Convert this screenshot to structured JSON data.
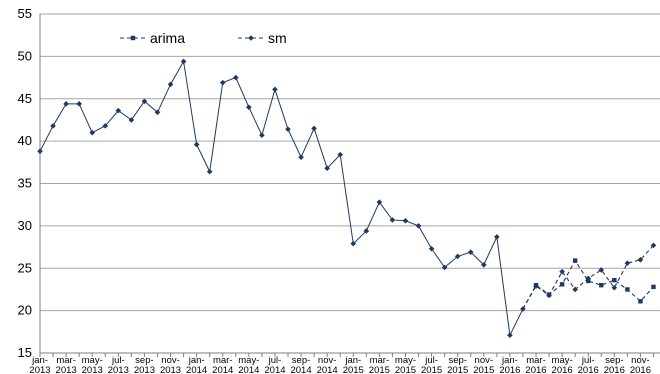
{
  "chart_data": {
    "type": "line",
    "ylim": [
      15,
      55
    ],
    "yticks": [
      15,
      20,
      25,
      30,
      35,
      40,
      45,
      50,
      55
    ],
    "grid": true,
    "legend_position": "top-left",
    "x_tick_labels": [
      {
        "top": "jan-",
        "bottom": "2013"
      },
      {
        "top": "mar-",
        "bottom": "2013"
      },
      {
        "top": "may-",
        "bottom": "2013"
      },
      {
        "top": "jul-",
        "bottom": "2013"
      },
      {
        "top": "sep-",
        "bottom": "2013"
      },
      {
        "top": "nov-",
        "bottom": "2013"
      },
      {
        "top": "jan-",
        "bottom": "2014"
      },
      {
        "top": "mar-",
        "bottom": "2014"
      },
      {
        "top": "may-",
        "bottom": "2014"
      },
      {
        "top": "jul-",
        "bottom": "2014"
      },
      {
        "top": "sep-",
        "bottom": "2014"
      },
      {
        "top": "nov-",
        "bottom": "2014"
      },
      {
        "top": "jan-",
        "bottom": "2015"
      },
      {
        "top": "mar-",
        "bottom": "2015"
      },
      {
        "top": "may-",
        "bottom": "2015"
      },
      {
        "top": "jul-",
        "bottom": "2015"
      },
      {
        "top": "sep-",
        "bottom": "2015"
      },
      {
        "top": "nov-",
        "bottom": "2015"
      },
      {
        "top": "jan-",
        "bottom": "2016"
      },
      {
        "top": "mar-",
        "bottom": "2016"
      },
      {
        "top": "may-",
        "bottom": "2016"
      },
      {
        "top": "jul-",
        "bottom": "2016"
      },
      {
        "top": "sep-",
        "bottom": "2016"
      },
      {
        "top": "nov-",
        "bottom": "2016"
      }
    ],
    "x": [
      "2013-01",
      "2013-02",
      "2013-03",
      "2013-04",
      "2013-05",
      "2013-06",
      "2013-07",
      "2013-08",
      "2013-09",
      "2013-10",
      "2013-11",
      "2013-12",
      "2014-01",
      "2014-02",
      "2014-03",
      "2014-04",
      "2014-05",
      "2014-06",
      "2014-07",
      "2014-08",
      "2014-09",
      "2014-10",
      "2014-11",
      "2014-12",
      "2015-01",
      "2015-02",
      "2015-03",
      "2015-04",
      "2015-05",
      "2015-06",
      "2015-07",
      "2015-08",
      "2015-09",
      "2015-10",
      "2015-11",
      "2015-12",
      "2016-01",
      "2016-02",
      "2016-03",
      "2016-04",
      "2016-05",
      "2016-06",
      "2016-07",
      "2016-08",
      "2016-09",
      "2016-10",
      "2016-11",
      "2016-12"
    ],
    "series": [
      {
        "name": "arima",
        "color": "#1f3864",
        "marker": "square",
        "line_style": "dashed",
        "values": [
          38.8,
          41.8,
          44.4,
          44.4,
          41.0,
          41.8,
          43.6,
          42.5,
          44.7,
          43.4,
          46.7,
          49.4,
          39.6,
          36.4,
          46.9,
          47.5,
          44.0,
          40.7,
          46.1,
          41.4,
          38.1,
          41.5,
          36.8,
          38.4,
          27.9,
          29.4,
          32.8,
          30.7,
          30.6,
          30.0,
          27.3,
          25.1,
          26.4,
          26.9,
          25.4,
          28.7,
          17.1,
          20.2,
          23.0,
          21.9,
          23.1,
          25.9,
          23.5,
          23.0,
          23.6,
          22.5,
          21.1,
          22.8
        ]
      },
      {
        "name": "sm",
        "color": "#1f3864",
        "marker": "diamond",
        "line_style": "dashed",
        "values": [
          38.8,
          41.8,
          44.4,
          44.4,
          41.0,
          41.8,
          43.6,
          42.5,
          44.7,
          43.4,
          46.7,
          49.4,
          39.6,
          36.4,
          46.9,
          47.5,
          44.0,
          40.7,
          46.1,
          41.4,
          38.1,
          41.5,
          36.8,
          38.4,
          27.9,
          29.4,
          32.8,
          30.7,
          30.6,
          30.0,
          27.3,
          25.1,
          26.4,
          26.9,
          25.4,
          28.7,
          17.1,
          20.2,
          22.9,
          21.8,
          24.6,
          22.5,
          23.8,
          24.8,
          22.7,
          25.6,
          26.0,
          27.7
        ]
      }
    ]
  }
}
